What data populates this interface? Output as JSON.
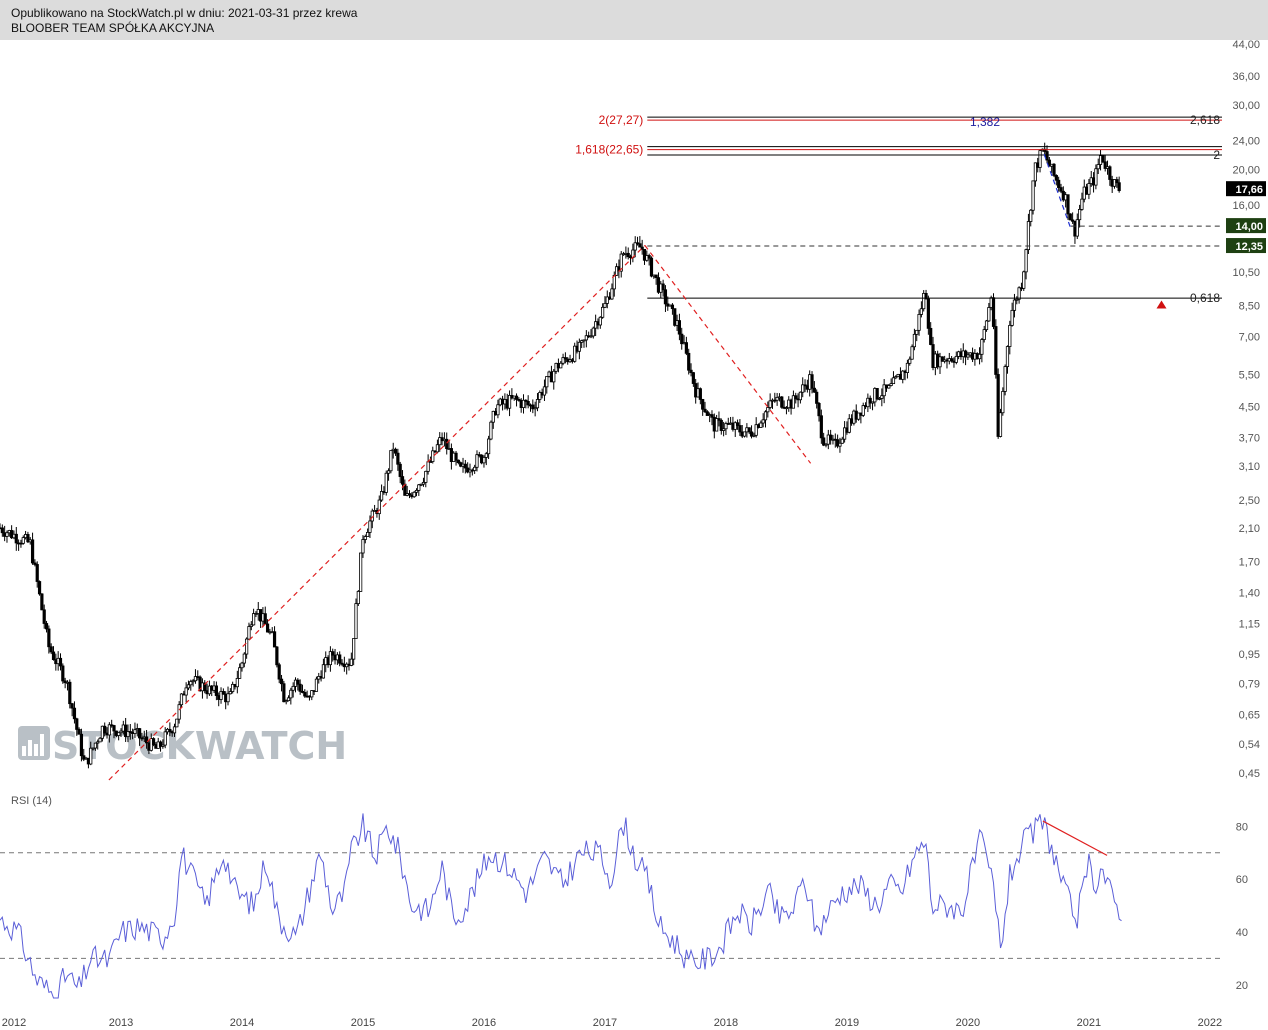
{
  "header": {
    "line1": "Opublikowano na StockWatch.pl w dniu: 2021-03-31 przez krewa",
    "line2": "BLOOBER TEAM SPÓŁKA AKCYJNA"
  },
  "watermark": {
    "text": "STOCKWATCH",
    "icon": "bar-chart-logo-icon"
  },
  "colors": {
    "candle": "#000000",
    "fib_red": "#d01010",
    "fib_blue": "#2020a0",
    "trend_red": "#e02020",
    "trend_blue": "#2030d0",
    "rsi": "#5b5fd8",
    "tag_dark": "#1e4012",
    "tag_black": "#000000"
  },
  "chart_data": [
    {
      "type": "candlestick",
      "title": "",
      "y_scale": "log",
      "ylim": [
        0.43,
        44.0
      ],
      "xlim": [
        2012.0,
        2022.1
      ],
      "y_ticks": [
        "44,00",
        "36,00",
        "30,00",
        "24,00",
        "20,00",
        "16,00",
        "10,50",
        "8,50",
        "7,00",
        "5,50",
        "4,50",
        "3,70",
        "3,10",
        "2,50",
        "2,10",
        "1,70",
        "1,40",
        "1,15",
        "0,95",
        "0,79",
        "0,65",
        "0,54",
        "0,45"
      ],
      "y_tick_values": [
        44,
        36,
        30,
        24,
        20,
        16,
        10.5,
        8.5,
        7,
        5.5,
        4.5,
        3.7,
        3.1,
        2.5,
        2.1,
        1.7,
        1.4,
        1.15,
        0.95,
        0.79,
        0.65,
        0.54,
        0.45
      ],
      "x_ticks": [
        "2012",
        "2013",
        "2014",
        "2015",
        "2016",
        "2017",
        "2018",
        "2019",
        "2020",
        "2021",
        "2022"
      ],
      "x_tick_values": [
        2012,
        2013,
        2014,
        2015,
        2016,
        2017,
        2018,
        2019,
        2020,
        2021,
        2022
      ],
      "close_anchors": [
        [
          2012.0,
          2.1
        ],
        [
          2012.25,
          1.9
        ],
        [
          2012.4,
          1.0
        ],
        [
          2012.55,
          0.8
        ],
        [
          2012.7,
          0.47
        ],
        [
          2012.85,
          0.6
        ],
        [
          2013.1,
          0.58
        ],
        [
          2013.3,
          0.52
        ],
        [
          2013.45,
          0.62
        ],
        [
          2013.55,
          0.82
        ],
        [
          2013.75,
          0.75
        ],
        [
          2013.9,
          0.72
        ],
        [
          2014.0,
          0.9
        ],
        [
          2014.1,
          1.3
        ],
        [
          2014.25,
          1.05
        ],
        [
          2014.35,
          0.72
        ],
        [
          2014.45,
          0.8
        ],
        [
          2014.55,
          0.7
        ],
        [
          2014.65,
          0.85
        ],
        [
          2014.75,
          0.95
        ],
        [
          2014.9,
          0.9
        ],
        [
          2015.0,
          2.0
        ],
        [
          2015.15,
          2.5
        ],
        [
          2015.25,
          3.5
        ],
        [
          2015.35,
          2.5
        ],
        [
          2015.5,
          2.9
        ],
        [
          2015.65,
          3.7
        ],
        [
          2015.8,
          3.0
        ],
        [
          2016.0,
          3.3
        ],
        [
          2016.1,
          4.5
        ],
        [
          2016.25,
          4.7
        ],
        [
          2016.4,
          4.5
        ],
        [
          2016.6,
          5.8
        ],
        [
          2016.8,
          6.5
        ],
        [
          2017.0,
          8.5
        ],
        [
          2017.15,
          11.8
        ],
        [
          2017.3,
          12.3
        ],
        [
          2017.45,
          9.5
        ],
        [
          2017.6,
          7.5
        ],
        [
          2017.75,
          5.0
        ],
        [
          2017.9,
          4.0
        ],
        [
          2018.0,
          4.0
        ],
        [
          2018.2,
          3.8
        ],
        [
          2018.4,
          4.7
        ],
        [
          2018.55,
          4.6
        ],
        [
          2018.7,
          5.4
        ],
        [
          2018.8,
          3.7
        ],
        [
          2018.9,
          3.5
        ],
        [
          2019.0,
          4.0
        ],
        [
          2019.2,
          4.8
        ],
        [
          2019.35,
          5.0
        ],
        [
          2019.5,
          5.8
        ],
        [
          2019.6,
          8.0
        ],
        [
          2019.65,
          9.5
        ],
        [
          2019.7,
          6.0
        ],
        [
          2019.8,
          6.1
        ],
        [
          2019.95,
          6.2
        ],
        [
          2020.1,
          6.3
        ],
        [
          2020.2,
          9.3
        ],
        [
          2020.25,
          3.7
        ],
        [
          2020.35,
          8.0
        ],
        [
          2020.45,
          10.0
        ],
        [
          2020.55,
          20.0
        ],
        [
          2020.62,
          22.6
        ],
        [
          2020.7,
          19.5
        ],
        [
          2020.8,
          17.0
        ],
        [
          2020.88,
          13.5
        ],
        [
          2020.95,
          17.0
        ],
        [
          2021.05,
          19.0
        ],
        [
          2021.1,
          22.0
        ],
        [
          2021.2,
          18.5
        ],
        [
          2021.25,
          17.66
        ]
      ],
      "last_price": 17.66,
      "price_tags": [
        {
          "label": "17,66",
          "value": 17.66,
          "style": "black"
        },
        {
          "label": "14,00",
          "value": 14.0,
          "style": "dark"
        },
        {
          "label": "12,35",
          "value": 12.35,
          "style": "dark"
        }
      ],
      "fib_lines": [
        {
          "value": 27.27,
          "label_left": "2(27,27)",
          "label_mid": "1,382",
          "label_right": "2,618",
          "x_start": 2017.35,
          "left_color": "red"
        },
        {
          "value": 22.65,
          "label_left": "1,618(22,65)",
          "label_mid": "",
          "label_right": "",
          "x_start": 2017.35,
          "left_color": "red"
        },
        {
          "value": 21.9,
          "label_left": "",
          "label_mid": "",
          "label_right": "2",
          "x_start": 2017.35,
          "left_color": "black"
        },
        {
          "value": 8.9,
          "label_left": "",
          "label_mid": "",
          "label_right": "0,618",
          "x_start": 2017.35,
          "left_color": "black"
        }
      ],
      "dashed_levels": [
        {
          "value": 14.0,
          "x_start": 2020.85
        },
        {
          "value": 12.35,
          "x_start": 2017.35
        }
      ],
      "trendlines": [
        {
          "from": [
            2012.9,
            0.43
          ],
          "to": [
            2017.33,
            12.4
          ],
          "color": "red"
        },
        {
          "from": [
            2017.33,
            12.4
          ],
          "to": [
            2018.7,
            3.15
          ],
          "color": "red"
        },
        {
          "from": [
            2020.63,
            22.0
          ],
          "to": [
            2020.85,
            13.8
          ],
          "color": "blue"
        }
      ],
      "marker": {
        "type": "triangle-up",
        "x": 2021.6,
        "value": 8.55,
        "color": "red"
      }
    },
    {
      "type": "line",
      "title": "RSI (14)",
      "ylim": [
        15,
        93
      ],
      "y_ticks": [
        "80",
        "60",
        "40",
        "20"
      ],
      "y_tick_values": [
        80,
        60,
        40,
        20
      ],
      "bands": [
        30,
        70
      ],
      "anchors": [
        [
          2012.0,
          45
        ],
        [
          2012.15,
          40
        ],
        [
          2012.3,
          22
        ],
        [
          2012.45,
          16
        ],
        [
          2012.55,
          24
        ],
        [
          2012.65,
          18
        ],
        [
          2012.75,
          30
        ],
        [
          2012.9,
          29
        ],
        [
          2013.0,
          40
        ],
        [
          2013.15,
          42
        ],
        [
          2013.35,
          38
        ],
        [
          2013.45,
          48
        ],
        [
          2013.5,
          70
        ],
        [
          2013.6,
          60
        ],
        [
          2013.7,
          50
        ],
        [
          2013.85,
          70
        ],
        [
          2013.95,
          55
        ],
        [
          2014.1,
          50
        ],
        [
          2014.2,
          68
        ],
        [
          2014.3,
          45
        ],
        [
          2014.45,
          38
        ],
        [
          2014.55,
          55
        ],
        [
          2014.65,
          70
        ],
        [
          2014.75,
          48
        ],
        [
          2014.85,
          55
        ],
        [
          2014.9,
          70
        ],
        [
          2015.0,
          80
        ],
        [
          2015.1,
          68
        ],
        [
          2015.2,
          80
        ],
        [
          2015.3,
          70
        ],
        [
          2015.4,
          50
        ],
        [
          2015.55,
          48
        ],
        [
          2015.65,
          65
        ],
        [
          2015.75,
          45
        ],
        [
          2015.85,
          50
        ],
        [
          2015.95,
          60
        ],
        [
          2016.05,
          70
        ],
        [
          2016.2,
          65
        ],
        [
          2016.35,
          55
        ],
        [
          2016.5,
          68
        ],
        [
          2016.65,
          58
        ],
        [
          2016.8,
          70
        ],
        [
          2016.95,
          70
        ],
        [
          2017.05,
          60
        ],
        [
          2017.15,
          82
        ],
        [
          2017.25,
          68
        ],
        [
          2017.35,
          60
        ],
        [
          2017.45,
          42
        ],
        [
          2017.6,
          35
        ],
        [
          2017.7,
          28
        ],
        [
          2017.85,
          30
        ],
        [
          2017.95,
          34
        ],
        [
          2018.1,
          48
        ],
        [
          2018.2,
          42
        ],
        [
          2018.35,
          55
        ],
        [
          2018.45,
          45
        ],
        [
          2018.55,
          48
        ],
        [
          2018.65,
          60
        ],
        [
          2018.75,
          40
        ],
        [
          2018.85,
          48
        ],
        [
          2018.95,
          55
        ],
        [
          2019.1,
          58
        ],
        [
          2019.25,
          50
        ],
        [
          2019.35,
          58
        ],
        [
          2019.45,
          55
        ],
        [
          2019.55,
          68
        ],
        [
          2019.65,
          75
        ],
        [
          2019.7,
          50
        ],
        [
          2019.85,
          50
        ],
        [
          2019.95,
          48
        ],
        [
          2020.1,
          75
        ],
        [
          2020.2,
          60
        ],
        [
          2020.27,
          34
        ],
        [
          2020.35,
          62
        ],
        [
          2020.45,
          73
        ],
        [
          2020.55,
          78
        ],
        [
          2020.62,
          82
        ],
        [
          2020.72,
          68
        ],
        [
          2020.8,
          55
        ],
        [
          2020.9,
          45
        ],
        [
          2020.95,
          55
        ],
        [
          2021.0,
          65
        ],
        [
          2021.05,
          58
        ],
        [
          2021.1,
          65
        ],
        [
          2021.2,
          52
        ],
        [
          2021.27,
          48
        ]
      ],
      "trendline": {
        "from": [
          2020.62,
          82
        ],
        "to": [
          2021.15,
          69
        ],
        "color": "red"
      }
    }
  ]
}
